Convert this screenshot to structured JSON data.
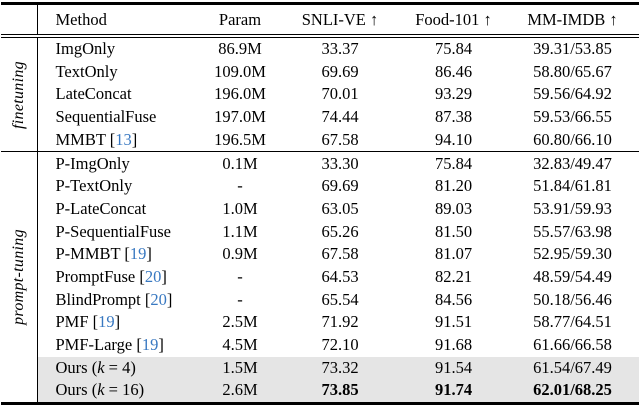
{
  "colors": {
    "citation_link": "#3878c1",
    "highlight_row_bg": "#e5e5e5",
    "rule": "#000000"
  },
  "table": {
    "columns": [
      "Method",
      "Param",
      "SNLI-VE ↑",
      "Food-101 ↑",
      "MM-IMDB ↑"
    ],
    "groups": [
      {
        "label": "finetuning",
        "rows": [
          {
            "method_parts": [
              {
                "text": "ImgOnly",
                "style": "normal"
              }
            ],
            "param": "86.9M",
            "values": [
              "33.37",
              "75.84",
              "39.31/53.85"
            ],
            "bold": false,
            "highlight": false
          },
          {
            "method_parts": [
              {
                "text": "TextOnly",
                "style": "normal"
              }
            ],
            "param": "109.0M",
            "values": [
              "69.69",
              "86.46",
              "58.80/65.67"
            ],
            "bold": false,
            "highlight": false
          },
          {
            "method_parts": [
              {
                "text": "LateConcat",
                "style": "normal"
              }
            ],
            "param": "196.0M",
            "values": [
              "70.01",
              "93.29",
              "59.56/64.92"
            ],
            "bold": false,
            "highlight": false
          },
          {
            "method_parts": [
              {
                "text": "SequentialFuse",
                "style": "normal"
              }
            ],
            "param": "197.0M",
            "values": [
              "74.44",
              "87.38",
              "59.53/66.55"
            ],
            "bold": false,
            "highlight": false
          },
          {
            "method_parts": [
              {
                "text": "MMBT [",
                "style": "normal"
              },
              {
                "text": "13",
                "style": "cite"
              },
              {
                "text": "]",
                "style": "normal"
              }
            ],
            "param": "196.5M",
            "values": [
              "67.58",
              "94.10",
              "60.80/66.10"
            ],
            "bold": false,
            "highlight": false
          }
        ]
      },
      {
        "label": "prompt-tuning",
        "rows": [
          {
            "method_parts": [
              {
                "text": "P-ImgOnly",
                "style": "normal"
              }
            ],
            "param": "0.1M",
            "values": [
              "33.30",
              "75.84",
              "32.83/49.47"
            ],
            "bold": false,
            "highlight": false
          },
          {
            "method_parts": [
              {
                "text": "P-TextOnly",
                "style": "normal"
              }
            ],
            "param": "-",
            "values": [
              "69.69",
              "81.20",
              "51.84/61.81"
            ],
            "bold": false,
            "highlight": false
          },
          {
            "method_parts": [
              {
                "text": "P-LateConcat",
                "style": "normal"
              }
            ],
            "param": "1.0M",
            "values": [
              "63.05",
              "89.03",
              "53.91/59.93"
            ],
            "bold": false,
            "highlight": false
          },
          {
            "method_parts": [
              {
                "text": "P-SequentialFuse",
                "style": "normal"
              }
            ],
            "param": "1.1M",
            "values": [
              "65.26",
              "81.50",
              "55.57/63.98"
            ],
            "bold": false,
            "highlight": false
          },
          {
            "method_parts": [
              {
                "text": "P-MMBT [",
                "style": "normal"
              },
              {
                "text": "19",
                "style": "cite"
              },
              {
                "text": "]",
                "style": "normal"
              }
            ],
            "param": "0.9M",
            "values": [
              "67.58",
              "81.07",
              "52.95/59.30"
            ],
            "bold": false,
            "highlight": false
          },
          {
            "method_parts": [
              {
                "text": "PromptFuse [",
                "style": "normal"
              },
              {
                "text": "20",
                "style": "cite"
              },
              {
                "text": "]",
                "style": "normal"
              }
            ],
            "param": "-",
            "values": [
              "64.53",
              "82.21",
              "48.59/54.49"
            ],
            "bold": false,
            "highlight": false
          },
          {
            "method_parts": [
              {
                "text": "BlindPrompt [",
                "style": "normal"
              },
              {
                "text": "20",
                "style": "cite"
              },
              {
                "text": "]",
                "style": "normal"
              }
            ],
            "param": "-",
            "values": [
              "65.54",
              "84.56",
              "50.18/56.46"
            ],
            "bold": false,
            "highlight": false
          },
          {
            "method_parts": [
              {
                "text": "PMF [",
                "style": "normal"
              },
              {
                "text": "19",
                "style": "cite"
              },
              {
                "text": "]",
                "style": "normal"
              }
            ],
            "param": "2.5M",
            "values": [
              "71.92",
              "91.51",
              "58.77/64.51"
            ],
            "bold": false,
            "highlight": false
          },
          {
            "method_parts": [
              {
                "text": "PMF-Large [",
                "style": "normal"
              },
              {
                "text": "19",
                "style": "cite"
              },
              {
                "text": "]",
                "style": "normal"
              }
            ],
            "param": "4.5M",
            "values": [
              "72.10",
              "91.68",
              "61.66/66.58"
            ],
            "bold": false,
            "highlight": false
          },
          {
            "method_parts": [
              {
                "text": "Ours (",
                "style": "normal"
              },
              {
                "text": "k",
                "style": "italic"
              },
              {
                "text": " = 4)",
                "style": "normal"
              }
            ],
            "param": "1.5M",
            "values": [
              "73.32",
              "91.54",
              "61.54/67.49"
            ],
            "bold": false,
            "highlight": true
          },
          {
            "method_parts": [
              {
                "text": "Ours (",
                "style": "normal"
              },
              {
                "text": "k",
                "style": "italic"
              },
              {
                "text": " = 16)",
                "style": "normal"
              }
            ],
            "param": "2.6M",
            "values": [
              "73.85",
              "91.74",
              "62.01/68.25"
            ],
            "bold": true,
            "highlight": true
          }
        ]
      }
    ]
  }
}
